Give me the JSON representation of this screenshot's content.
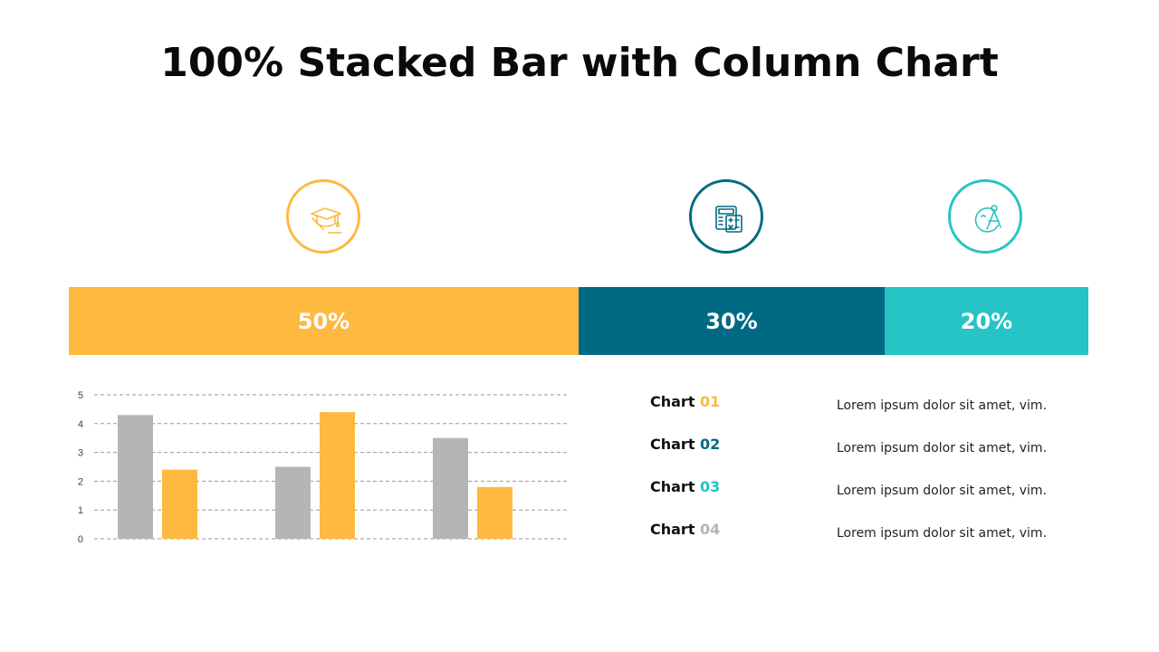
{
  "title": "100% Stacked Bar with Column Chart",
  "colors": {
    "yellow": "#FDB940",
    "teal_dark": "#006A85",
    "teal_light": "#26C4C4",
    "gray": "#B5B5B5",
    "grid": "#9a9a9a",
    "axis_label": "#444444"
  },
  "icons": [
    {
      "name": "graduation-cap-icon",
      "color": "#FDB940"
    },
    {
      "name": "calculator-icon",
      "color": "#006A85"
    },
    {
      "name": "compass-icon",
      "color": "#26C4C4"
    }
  ],
  "chart_data": [
    {
      "type": "bar",
      "orientation": "horizontal-100%-stacked",
      "segments": [
        {
          "label": "50%",
          "value": 50,
          "color": "#FDB940"
        },
        {
          "label": "30%",
          "value": 30,
          "color": "#006A85"
        },
        {
          "label": "20%",
          "value": 20,
          "color": "#26C4C4"
        }
      ]
    },
    {
      "type": "bar",
      "categories": [
        "",
        "",
        ""
      ],
      "series": [
        {
          "values": [
            4.3,
            2.5,
            3.5
          ],
          "color": "#B5B5B5"
        },
        {
          "values": [
            2.4,
            4.4,
            1.8
          ],
          "color": "#FDB940"
        }
      ],
      "ylim": [
        0,
        5
      ],
      "yticks": [
        "0",
        "1",
        "2",
        "3",
        "4",
        "5"
      ],
      "grid": true
    }
  ],
  "legend": [
    {
      "label": "Chart",
      "num": "01",
      "num_color": "#FDB940",
      "text": "Lorem ipsum dolor sit amet, vim."
    },
    {
      "label": "Chart",
      "num": "02",
      "num_color": "#006A85",
      "text": "Lorem ipsum dolor sit amet, vim."
    },
    {
      "label": "Chart",
      "num": "03",
      "num_color": "#26C4C4",
      "text": "Lorem ipsum dolor sit amet, vim."
    },
    {
      "label": "Chart",
      "num": "04",
      "num_color": "#B5B5B5",
      "text": "Lorem ipsum dolor sit amet, vim."
    }
  ]
}
